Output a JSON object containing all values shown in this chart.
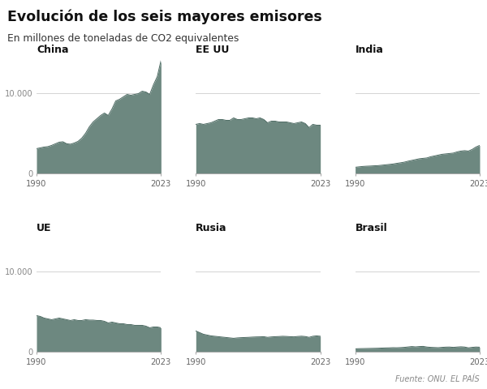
{
  "title": "Evolución de los seis mayores emisores",
  "subtitle": "En millones de toneladas de CO2 equivalentes",
  "source": "Fuente: ONU. EL PAÍS",
  "fill_color": "#6d8880",
  "fill_alpha": 1.0,
  "line_color": "#4a6860",
  "background_color": "#ffffff",
  "years": [
    1990,
    1991,
    1992,
    1993,
    1994,
    1995,
    1996,
    1997,
    1998,
    1999,
    2000,
    2001,
    2002,
    2003,
    2004,
    2005,
    2006,
    2007,
    2008,
    2009,
    2010,
    2011,
    2012,
    2013,
    2014,
    2015,
    2016,
    2017,
    2018,
    2019,
    2020,
    2021,
    2022,
    2023
  ],
  "shared_ylim": [
    0,
    14500
  ],
  "ytick_value": 10000,
  "ytick_label": "10.000",
  "zero_label": "0",
  "panels": [
    {
      "name": "China",
      "show_yticks": true,
      "values": [
        3100,
        3200,
        3300,
        3350,
        3500,
        3700,
        3900,
        3950,
        3700,
        3650,
        3800,
        4000,
        4400,
        5000,
        5800,
        6400,
        6800,
        7200,
        7500,
        7200,
        8000,
        9000,
        9200,
        9500,
        9800,
        9700,
        9800,
        9900,
        10200,
        10100,
        9800,
        11000,
        12000,
        14000
      ]
    },
    {
      "name": "EE UU",
      "show_yticks": false,
      "values": [
        6100,
        6200,
        6100,
        6200,
        6300,
        6500,
        6700,
        6700,
        6600,
        6600,
        6900,
        6700,
        6700,
        6800,
        6900,
        6900,
        6800,
        6900,
        6700,
        6300,
        6500,
        6500,
        6400,
        6400,
        6400,
        6300,
        6200,
        6300,
        6400,
        6200,
        5700,
        6100,
        6000,
        6000
      ]
    },
    {
      "name": "India",
      "show_yticks": false,
      "values": [
        800,
        850,
        900,
        930,
        950,
        980,
        1000,
        1050,
        1100,
        1150,
        1200,
        1280,
        1350,
        1430,
        1550,
        1650,
        1750,
        1850,
        1900,
        1950,
        2100,
        2200,
        2300,
        2400,
        2450,
        2500,
        2550,
        2700,
        2800,
        2850,
        2800,
        3000,
        3300,
        3500
      ]
    },
    {
      "name": "UE",
      "show_yticks": true,
      "values": [
        4500,
        4400,
        4200,
        4100,
        4000,
        4100,
        4200,
        4100,
        4000,
        3900,
        4000,
        3900,
        3900,
        4000,
        3950,
        3950,
        3900,
        3900,
        3800,
        3600,
        3700,
        3600,
        3500,
        3500,
        3400,
        3400,
        3300,
        3300,
        3300,
        3200,
        3000,
        3100,
        3100,
        3000
      ]
    },
    {
      "name": "Rusia",
      "show_yticks": false,
      "values": [
        2600,
        2400,
        2200,
        2100,
        2000,
        1950,
        1900,
        1850,
        1800,
        1750,
        1700,
        1750,
        1780,
        1800,
        1820,
        1850,
        1870,
        1880,
        1900,
        1820,
        1870,
        1900,
        1920,
        1950,
        1930,
        1900,
        1880,
        1930,
        1960,
        1920,
        1820,
        1950,
        2000,
        1950
      ]
    },
    {
      "name": "Brasil",
      "show_yticks": false,
      "values": [
        400,
        420,
        430,
        440,
        450,
        460,
        470,
        490,
        510,
        520,
        540,
        530,
        550,
        580,
        630,
        680,
        640,
        680,
        700,
        620,
        580,
        560,
        540,
        580,
        610,
        620,
        580,
        620,
        650,
        620,
        520,
        580,
        620,
        600
      ]
    }
  ]
}
